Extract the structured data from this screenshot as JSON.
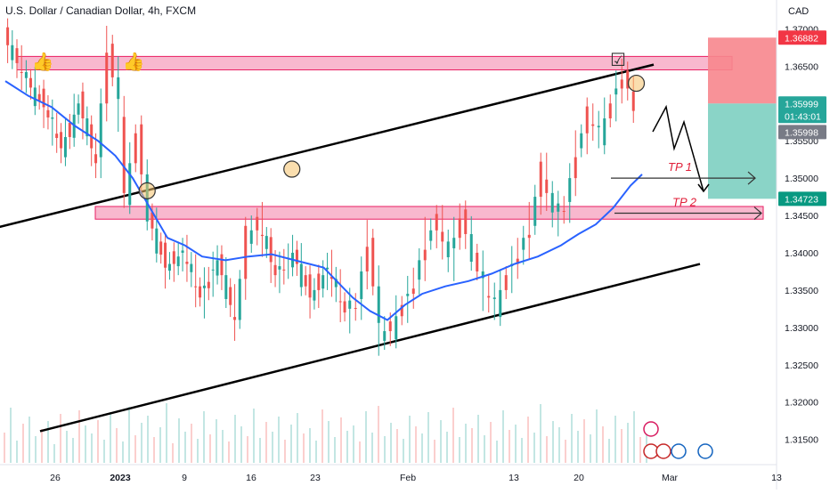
{
  "header": {
    "title": "U.S. Dollar / Canadian Dollar, 4h, FXCM",
    "currency": "CAD"
  },
  "colors": {
    "up": "#26a69a",
    "down": "#ef5350",
    "ma": "#2962ff",
    "zone": "#f06292",
    "stop": "#f7868d",
    "target": "#7dcfc1",
    "tp": "#e0203a"
  },
  "chart_data": {
    "type": "line",
    "symbol": "USDCAD",
    "timeframe": "4h",
    "ylim": [
      1.3115,
      1.3735
    ],
    "y_ticks": [
      1.315,
      1.32,
      1.325,
      1.33,
      1.335,
      1.34,
      1.345,
      1.35,
      1.355,
      1.36,
      1.365,
      1.37
    ],
    "y_tick_labels": [
      "1.31500",
      "1.32000",
      "1.32500",
      "1.33000",
      "1.33500",
      "1.34000",
      "1.34500",
      "1.35000",
      "1.35500",
      "1.36000",
      "1.36500",
      "1.37000"
    ],
    "x_ticks": [
      "26",
      "2023",
      "9",
      "16",
      "23",
      "Feb",
      "13",
      "20",
      "Mar",
      "13"
    ],
    "price_series": {
      "name": "USDCAD close",
      "points": [
        [
          0,
          1.369
        ],
        [
          4,
          1.363
        ],
        [
          7,
          1.3595
        ],
        [
          10,
          1.354
        ],
        [
          13,
          1.36
        ],
        [
          16,
          1.352
        ],
        [
          18,
          1.368
        ],
        [
          20,
          1.359
        ],
        [
          21,
          1.348
        ],
        [
          23,
          1.356
        ],
        [
          25,
          1.345
        ],
        [
          28,
          1.338
        ],
        [
          31,
          1.34
        ],
        [
          34,
          1.334
        ],
        [
          37,
          1.339
        ],
        [
          40,
          1.331
        ],
        [
          42,
          1.342
        ],
        [
          44,
          1.344
        ],
        [
          47,
          1.337
        ],
        [
          50,
          1.34
        ],
        [
          53,
          1.334
        ],
        [
          56,
          1.338
        ],
        [
          59,
          1.332
        ],
        [
          61,
          1.333
        ],
        [
          63,
          1.342
        ],
        [
          65,
          1.329
        ],
        [
          67,
          1.33
        ],
        [
          69,
          1.333
        ],
        [
          71,
          1.336
        ],
        [
          73,
          1.342
        ],
        [
          75,
          1.344
        ],
        [
          77,
          1.339
        ],
        [
          79,
          1.345
        ],
        [
          81,
          1.34
        ],
        [
          83,
          1.335
        ],
        [
          85,
          1.333
        ],
        [
          87,
          1.337
        ],
        [
          89,
          1.34
        ],
        [
          91,
          1.344
        ],
        [
          93,
          1.351
        ],
        [
          95,
          1.345
        ],
        [
          97,
          1.346
        ],
        [
          99,
          1.354
        ],
        [
          101,
          1.358
        ],
        [
          103,
          1.356
        ],
        [
          105,
          1.36
        ],
        [
          107,
          1.364
        ],
        [
          108,
          1.362
        ],
        [
          109,
          1.359
        ]
      ]
    },
    "ma_series": {
      "name": "moving average",
      "points": [
        [
          0,
          1.363
        ],
        [
          4,
          1.361
        ],
        [
          8,
          1.3595
        ],
        [
          12,
          1.357
        ],
        [
          16,
          1.355
        ],
        [
          19,
          1.353
        ],
        [
          22,
          1.35
        ],
        [
          25,
          1.346
        ],
        [
          28,
          1.342
        ],
        [
          31,
          1.341
        ],
        [
          34,
          1.3395
        ],
        [
          38,
          1.339
        ],
        [
          42,
          1.3395
        ],
        [
          46,
          1.3398
        ],
        [
          50,
          1.339
        ],
        [
          55,
          1.338
        ],
        [
          60,
          1.334
        ],
        [
          63,
          1.3322
        ],
        [
          66,
          1.331
        ],
        [
          69,
          1.333
        ],
        [
          72,
          1.3345
        ],
        [
          76,
          1.3355
        ],
        [
          80,
          1.3362
        ],
        [
          84,
          1.3372
        ],
        [
          88,
          1.3385
        ],
        [
          92,
          1.3395
        ],
        [
          96,
          1.341
        ],
        [
          99,
          1.3425
        ],
        [
          102,
          1.3438
        ],
        [
          105,
          1.346
        ],
        [
          108,
          1.349
        ],
        [
          110,
          1.3505
        ]
      ]
    },
    "volume": [
      34,
      62,
      25,
      44,
      52,
      30,
      38,
      47,
      21,
      55,
      36,
      28,
      59,
      42,
      33,
      48,
      26,
      57,
      39,
      24,
      63,
      31,
      45,
      53,
      29,
      40,
      67,
      22,
      50,
      35,
      44,
      27,
      58,
      32,
      49,
      37,
      24,
      54,
      41,
      30,
      61,
      28,
      46,
      35,
      52,
      26,
      43,
      56,
      33,
      39,
      25,
      60,
      47,
      29,
      51,
      36,
      42,
      24,
      58,
      34,
      64,
      30,
      45,
      38,
      27,
      53,
      41,
      33,
      57,
      26,
      48,
      35,
      62,
      29,
      44,
      39,
      54,
      31,
      46,
      25,
      59,
      37,
      43,
      28,
      52,
      34,
      66,
      30,
      47,
      40,
      26,
      55,
      36,
      49,
      32,
      60,
      41,
      27,
      53,
      38,
      45,
      58,
      29,
      42
    ],
    "current_price": 1.35999,
    "countdown": "01:43:01",
    "price_tags": [
      {
        "label": "1.36882",
        "value": 1.36882,
        "role": "stop"
      },
      {
        "label": "1.35999",
        "value": 1.35999,
        "role": "last"
      },
      {
        "label": "1.35998",
        "value": 1.35998,
        "role": "bid"
      },
      {
        "label": "1.34723",
        "value": 1.34723,
        "role": "target"
      }
    ],
    "resistance_zone": [
      1.3645,
      1.3663
    ],
    "support_zone": [
      1.3445,
      1.3462
    ],
    "channel_upper": [
      [
        -6,
        1.3425
      ],
      [
        112,
        1.3652
      ]
    ],
    "channel_lower": [
      [
        6,
        1.3161
      ],
      [
        120,
        1.3385
      ]
    ],
    "position": {
      "stop": 1.36882,
      "entry": 1.35999,
      "target": 1.34723
    },
    "annotations": [
      {
        "text": "TP 1",
        "level": 1.35
      },
      {
        "text": "TP 2",
        "level": 1.3453
      }
    ]
  }
}
